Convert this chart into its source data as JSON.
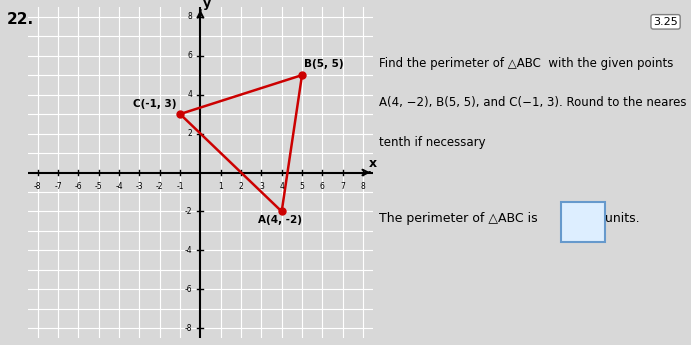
{
  "title_number": "22.",
  "points": {
    "A": [
      4,
      -2
    ],
    "B": [
      5,
      5
    ],
    "C": [
      -1,
      3
    ]
  },
  "point_labels": {
    "A": "A(4, -2)",
    "B": "B(5, 5)",
    "C": "C(-1, 3)"
  },
  "triangle_color": "#cc0000",
  "point_color": "#cc0000",
  "grid_color": "#cccccc",
  "axis_color": "#000000",
  "background_color": "#f0f0f0",
  "xlim": [
    -8.5,
    8.5
  ],
  "ylim": [
    -8.5,
    8.5
  ],
  "xticks": [
    -8,
    -7,
    -6,
    -5,
    -4,
    -3,
    -2,
    -1,
    1,
    2,
    3,
    4,
    5,
    6,
    7,
    8
  ],
  "yticks": [
    -8,
    -6,
    -4,
    -2,
    2,
    4,
    6,
    8
  ],
  "page_number": "3.25",
  "problem_text_line1": "Find the perimeter of △ABC  with the given points",
  "problem_text_line2": "A(4, −2), B(5, 5), and C(−1, 3). Round to the neares",
  "problem_text_line3": "tenth if necessary",
  "answer_text": "The perimeter of △ABC is",
  "answer_units": "units."
}
